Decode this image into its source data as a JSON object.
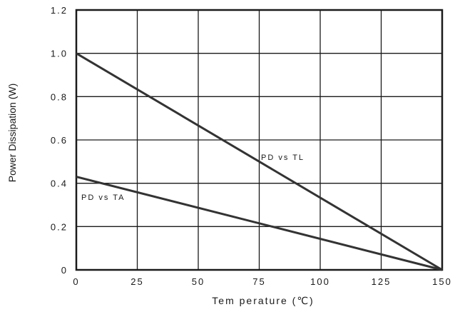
{
  "chart_data": {
    "type": "line",
    "title": "",
    "xlabel": "Tem perature (℃)",
    "ylabel": "Power Dissipation (W)",
    "xlim": [
      0,
      150
    ],
    "ylim": [
      0,
      1.2
    ],
    "x_ticks": [
      0,
      25,
      50,
      75,
      100,
      125,
      150
    ],
    "x_tick_labels": [
      "0",
      "25",
      "50",
      "75",
      "100",
      "125",
      "150"
    ],
    "y_ticks": [
      0,
      0.2,
      0.4,
      0.6,
      0.8,
      1.0,
      1.2
    ],
    "y_tick_labels": [
      "0",
      "0.2",
      "0.4",
      "0.6",
      "0.8",
      "1.0",
      "1.2"
    ],
    "grid": true,
    "series": [
      {
        "name": "PD vs TL",
        "x": [
          0,
          150
        ],
        "y": [
          1.0,
          0
        ]
      },
      {
        "name": "PD vs TA",
        "x": [
          0,
          150
        ],
        "y": [
          0.43,
          0
        ]
      }
    ],
    "colors": {
      "line": "#333333",
      "grid": "#1a1a1a"
    }
  }
}
